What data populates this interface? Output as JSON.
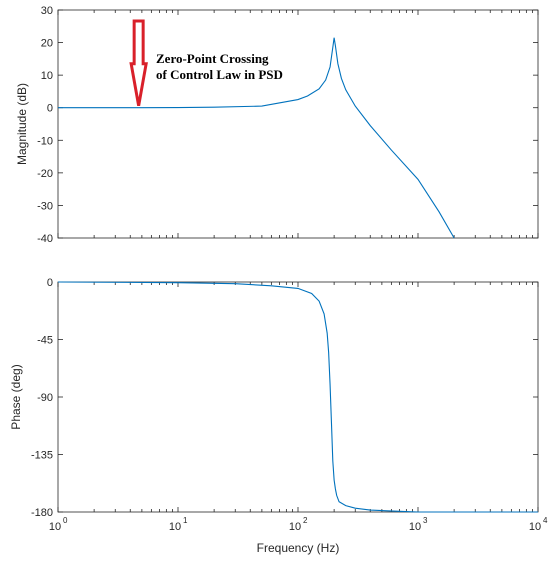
{
  "chart_data": [
    {
      "type": "line",
      "xscale": "log",
      "xlim": [
        1,
        10000
      ],
      "ylim": [
        -40,
        30
      ],
      "ylabel": "Magnitude (dB)",
      "yticks": [
        "30",
        "20",
        "10",
        "0",
        "-10",
        "-20",
        "-30",
        "-40"
      ],
      "grid": false,
      "line_color": "#0072BD",
      "series": [
        {
          "x": [
            1,
            2,
            5,
            10,
            20,
            50,
            100,
            120,
            150,
            170,
            185,
            195,
            200,
            205,
            215,
            230,
            250,
            300,
            400,
            600,
            1000,
            1500,
            2000
          ],
          "y": [
            0,
            0,
            0,
            0.05,
            0.15,
            0.5,
            2.5,
            3.6,
            5.8,
            8.5,
            12.5,
            18.5,
            21.5,
            19.0,
            13.5,
            9.0,
            5.5,
            0.5,
            -5.5,
            -13,
            -22,
            -32,
            -40
          ]
        }
      ],
      "annotation": {
        "lines": [
          "Zero-Point Crossing",
          "of Control Law in PSD"
        ],
        "arrow_target": {
          "x": 4.7,
          "y": 0
        },
        "arrow_color": "#D9202A"
      }
    },
    {
      "type": "line",
      "xscale": "log",
      "xlim": [
        1,
        10000
      ],
      "ylim": [
        -180,
        0
      ],
      "xlabel": "Frequency (Hz)",
      "ylabel": "Phase (deg)",
      "yticks": [
        "0",
        "-45",
        "-90",
        "-135",
        "-180"
      ],
      "xticks": [
        "10",
        "10",
        "10",
        "10",
        "10"
      ],
      "xtick_exponents": [
        "0",
        "1",
        "2",
        "3",
        "4"
      ],
      "grid": false,
      "line_color": "#0072BD",
      "series": [
        {
          "x": [
            1,
            10,
            30,
            60,
            100,
            130,
            150,
            165,
            175,
            180,
            185,
            190,
            195,
            200,
            205,
            210,
            220,
            250,
            300,
            400,
            700,
            1000,
            3000,
            10000
          ],
          "y": [
            0,
            -0.5,
            -1.3,
            -3,
            -5,
            -9,
            -15,
            -25,
            -40,
            -55,
            -80,
            -110,
            -140,
            -155,
            -162,
            -167,
            -172,
            -175,
            -177,
            -178.5,
            -179.5,
            -180,
            -180,
            -180
          ]
        }
      ]
    }
  ]
}
